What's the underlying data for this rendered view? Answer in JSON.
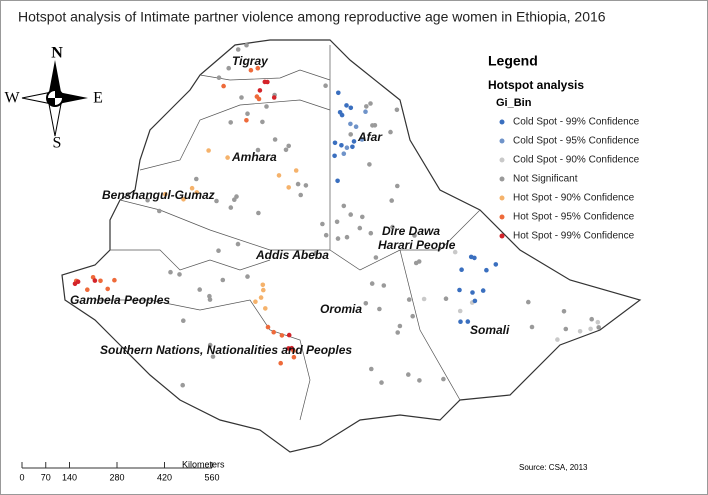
{
  "title": "Hotspot analysis of Intimate partner violence among reproductive age women in Ethiopia, 2016",
  "legend": {
    "title": "Legend",
    "subtitle": "Hotspot analysis",
    "field": "Gi_Bin",
    "items": [
      {
        "label": "Cold Spot - 99% Confidence",
        "color": "#3a6fbf"
      },
      {
        "label": "Cold Spot - 95% Confidence",
        "color": "#6f93c9"
      },
      {
        "label": "Cold Spot - 90% Confidence",
        "color": "#c9c9c9"
      },
      {
        "label": "Not Significant",
        "color": "#9a9a9a"
      },
      {
        "label": "Hot Spot - 90% Confidence",
        "color": "#f5b26b"
      },
      {
        "label": "Hot Spot - 95% Confidence",
        "color": "#ee6a3a"
      },
      {
        "label": "Hot Spot - 99% Confidence",
        "color": "#d4242a"
      }
    ]
  },
  "regions": [
    "Tigray",
    "Afar",
    "Amhara",
    "Benshangul-Gumaz",
    "Dire Dawa",
    "Harari People",
    "Addis Abeba",
    "Oromia",
    "Gambela Peoples",
    "Somali",
    "Southern Nations, Nationalities and Peoples"
  ],
  "compass": {
    "north": "N",
    "south": "S",
    "east": "E",
    "west": "W"
  },
  "scale_bar": {
    "ticks": [
      0,
      70,
      140,
      280,
      420,
      560
    ],
    "unit": "Kilometers"
  },
  "source": "Source: CSA, 2013"
}
